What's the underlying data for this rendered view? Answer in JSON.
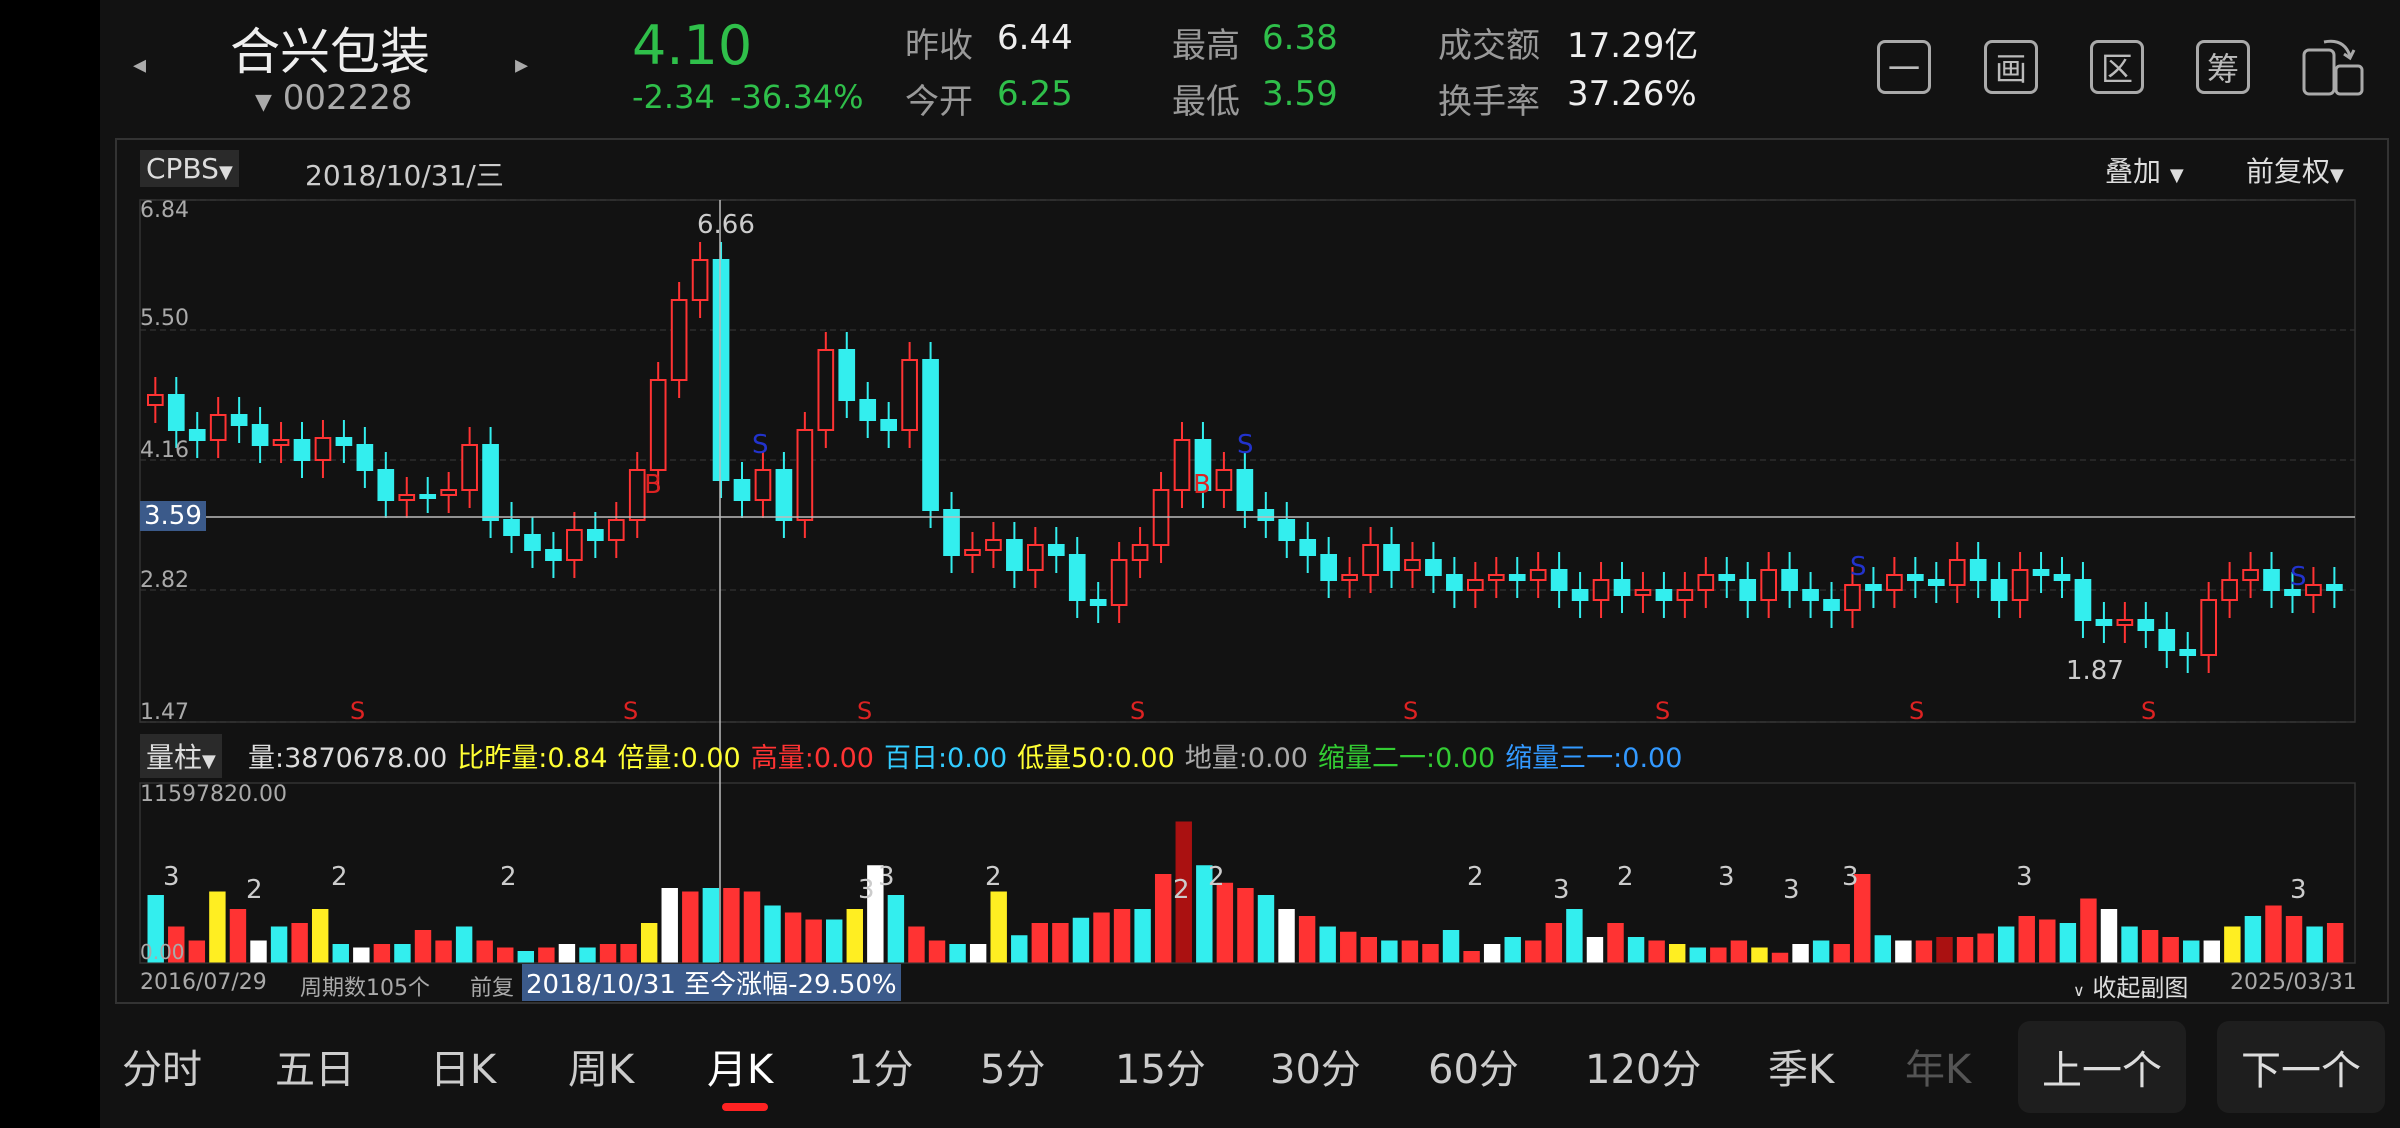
{
  "header": {
    "stock_name": "合兴包装",
    "stock_code": "002228",
    "price": "4.10",
    "change": "-2.34",
    "change_pct": "-36.34%",
    "quotes": {
      "prev_close_label": "昨收",
      "prev_close": "6.44",
      "open_label": "今开",
      "open": "6.25",
      "high_label": "最高",
      "high": "6.38",
      "low_label": "最低",
      "low": "3.59",
      "amount_label": "成交额",
      "amount": "17.29亿",
      "turnover_label": "换手率",
      "turnover": "37.26%"
    },
    "tools": [
      "一",
      "画",
      "区",
      "筹"
    ]
  },
  "chart": {
    "indicator": "CPBS",
    "date": "2018/10/31/三",
    "overlay": "叠加",
    "adjust": "前复权",
    "y_labels": [
      "6.84",
      "5.50",
      "4.16",
      "2.82",
      "1.47"
    ],
    "crosshair_price": "3.59",
    "high_label": "6.66",
    "low_label": "1.87",
    "signal_s": "S",
    "signal_b": "B"
  },
  "volume": {
    "selector": "量柱",
    "indicators": [
      {
        "label": "量:3870678.00",
        "color": "#dddddd"
      },
      {
        "label": "比昨量:0.84",
        "color": "#ffff33"
      },
      {
        "label": "倍量:0.00",
        "color": "#ffff33"
      },
      {
        "label": "高量:0.00",
        "color": "#ff3333"
      },
      {
        "label": "百日:0.00",
        "color": "#33ccff"
      },
      {
        "label": "低量50:0.00",
        "color": "#ffff33"
      },
      {
        "label": "地量:0.00",
        "color": "#aaaaaa"
      },
      {
        "label": "缩量二一:0.00",
        "color": "#33cc33"
      },
      {
        "label": "缩量三一:0.00",
        "color": "#3399ff"
      }
    ],
    "max_label": "11597820.00",
    "zero_label": "0.00",
    "marks": [
      "3",
      "2",
      "2",
      "2",
      "3",
      "3",
      "2",
      "2",
      "2",
      "2",
      "3",
      "2",
      "3",
      "3",
      "3",
      "3",
      "3"
    ]
  },
  "footer": {
    "start_date": "2016/07/29",
    "period_count": "周期数105个",
    "adjust_short": "前复",
    "range_info": "2018/10/31 至今涨幅-29.50%",
    "collapse": "收起副图",
    "end_date": "2025/03/31"
  },
  "period_tabs": [
    "分时",
    "五日",
    "日K",
    "周K",
    "月K",
    "1分",
    "5分",
    "15分",
    "30分",
    "60分",
    "120分",
    "季K",
    "年K"
  ],
  "active_tab": "月K",
  "prev_button": "上一个",
  "next_button": "下一个",
  "colors": {
    "up": "#ff3333",
    "down": "#33eeee",
    "accent_green": "#2fbf4a",
    "tab_indicator": "#ff2222"
  }
}
